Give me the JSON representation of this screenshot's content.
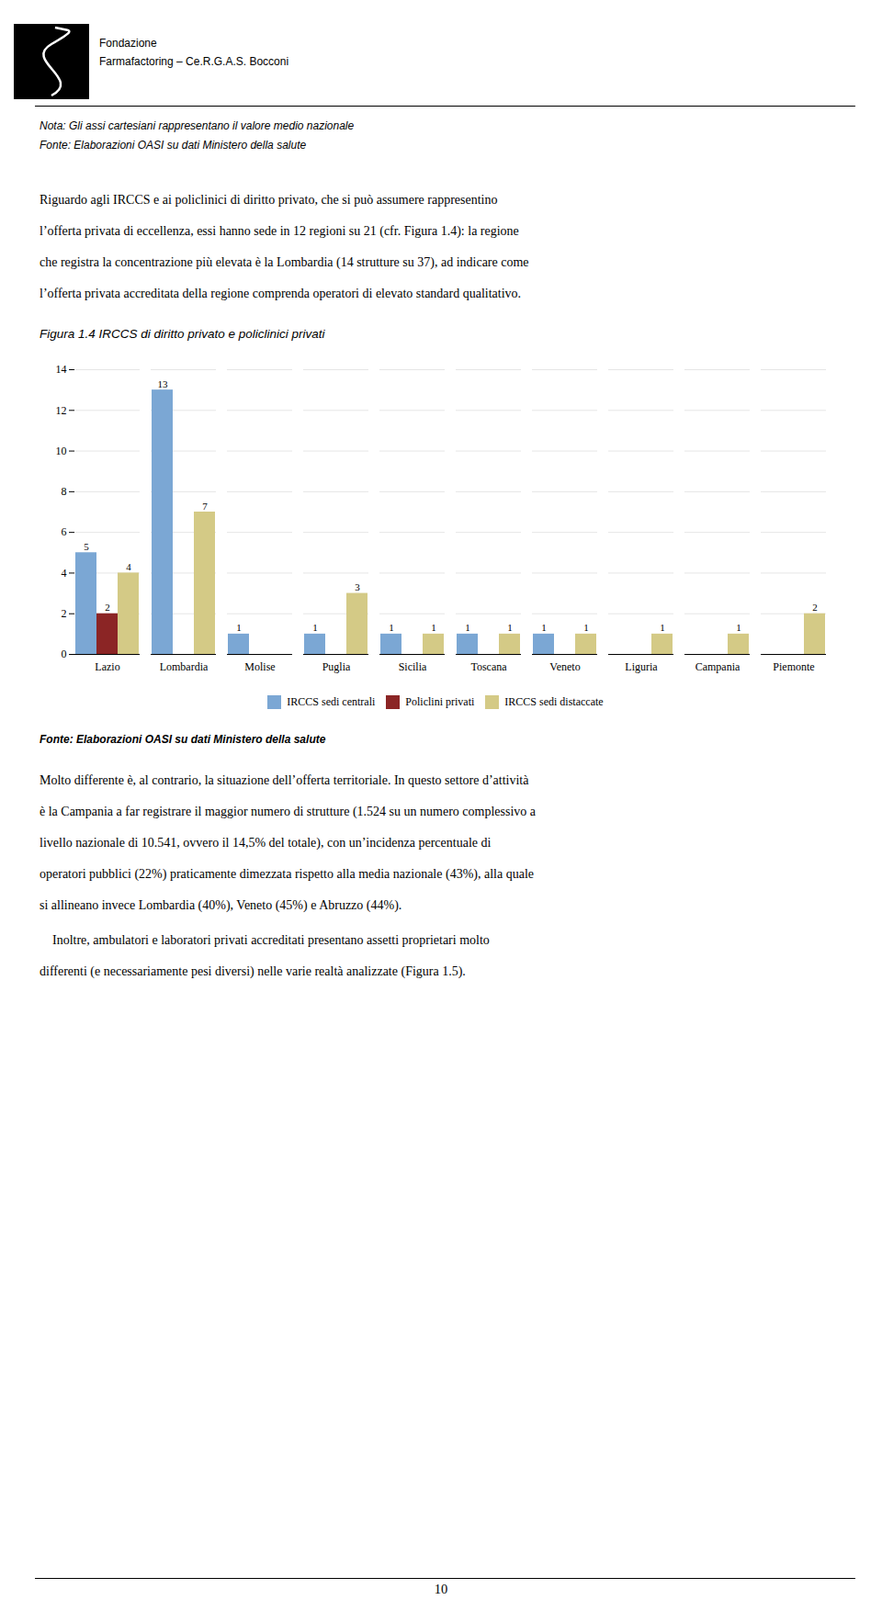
{
  "header": [
    "Fondazione",
    "Farmafactoring – Ce.R.G.A.S. Bocconi"
  ],
  "notes": [
    "Nota: Gli assi cartesiani rappresentano il valore medio nazionale",
    "Fonte: Elaborazioni OASI su dati Ministero della salute"
  ],
  "paragraphs_before": [
    [
      "Riguardo agli IRCCS e ai policlinici di diritto privato, che si può assumere rappresentino",
      "l’offerta privata di eccellenza, essi hanno sede in 12 regioni su 21 (cfr. Figura 1.4): la regione",
      "che registra la concentrazione più elevata è la Lombardia (14 strutture su 37), ad indicare come",
      "l’offerta privata accreditata della regione comprenda operatori di elevato standard qualitativo."
    ]
  ],
  "chart_data": {
    "type": "bar",
    "title": "Figura 1.4 IRCCS di diritto privato e policlinici privati",
    "caption": "Fonte: Elaborazioni OASI su dati Ministero della salute",
    "categories": [
      "Lazio",
      "Lombardia",
      "Molise",
      "Puglia",
      "Sicilia",
      "Toscana",
      "Veneto",
      "Liguria",
      "Campania",
      "Piemonte"
    ],
    "series": [
      {
        "name": "IRCCS sedi centrali",
        "color": "#7ba7d4",
        "values": [
          5,
          13,
          1,
          1,
          1,
          1,
          1,
          0,
          0,
          0
        ]
      },
      {
        "name": "Policlini privati",
        "color": "#8b2525",
        "values": [
          2,
          0,
          0,
          0,
          0,
          0,
          0,
          0,
          0,
          0
        ]
      },
      {
        "name": "IRCCS sedi distaccate",
        "color": "#d4ca86",
        "values": [
          4,
          7,
          0,
          3,
          1,
          1,
          1,
          1,
          1,
          2
        ]
      }
    ],
    "ylim": [
      0,
      14
    ],
    "yticks": [
      0,
      2,
      4,
      6,
      8,
      10,
      12,
      14
    ],
    "grid": true,
    "legend": "bottom",
    "data_labels": true
  },
  "paragraphs_after": [
    [
      "Molto differente è, al contrario, la situazione dell’offerta territoriale. In questo settore d’attività",
      "è la Campania a far registrare il maggior numero di strutture (1.524 su un numero complessivo a",
      "livello nazionale di 10.541, ovvero il 14,5% del totale), con un’incidenza percentuale di",
      "operatori pubblici (22%) praticamente dimezzata rispetto alla media nazionale (43%), alla quale",
      "si allineano invece Lombardia (40%), Veneto (45%) e Abruzzo (44%)."
    ],
    [
      "    Inoltre, ambulatori e laboratori privati accreditati presentano assetti proprietari molto",
      "differenti (e necessariamente pesi diversi) nelle varie realtà analizzate (Figura 1.5)."
    ]
  ],
  "page_number": "10"
}
